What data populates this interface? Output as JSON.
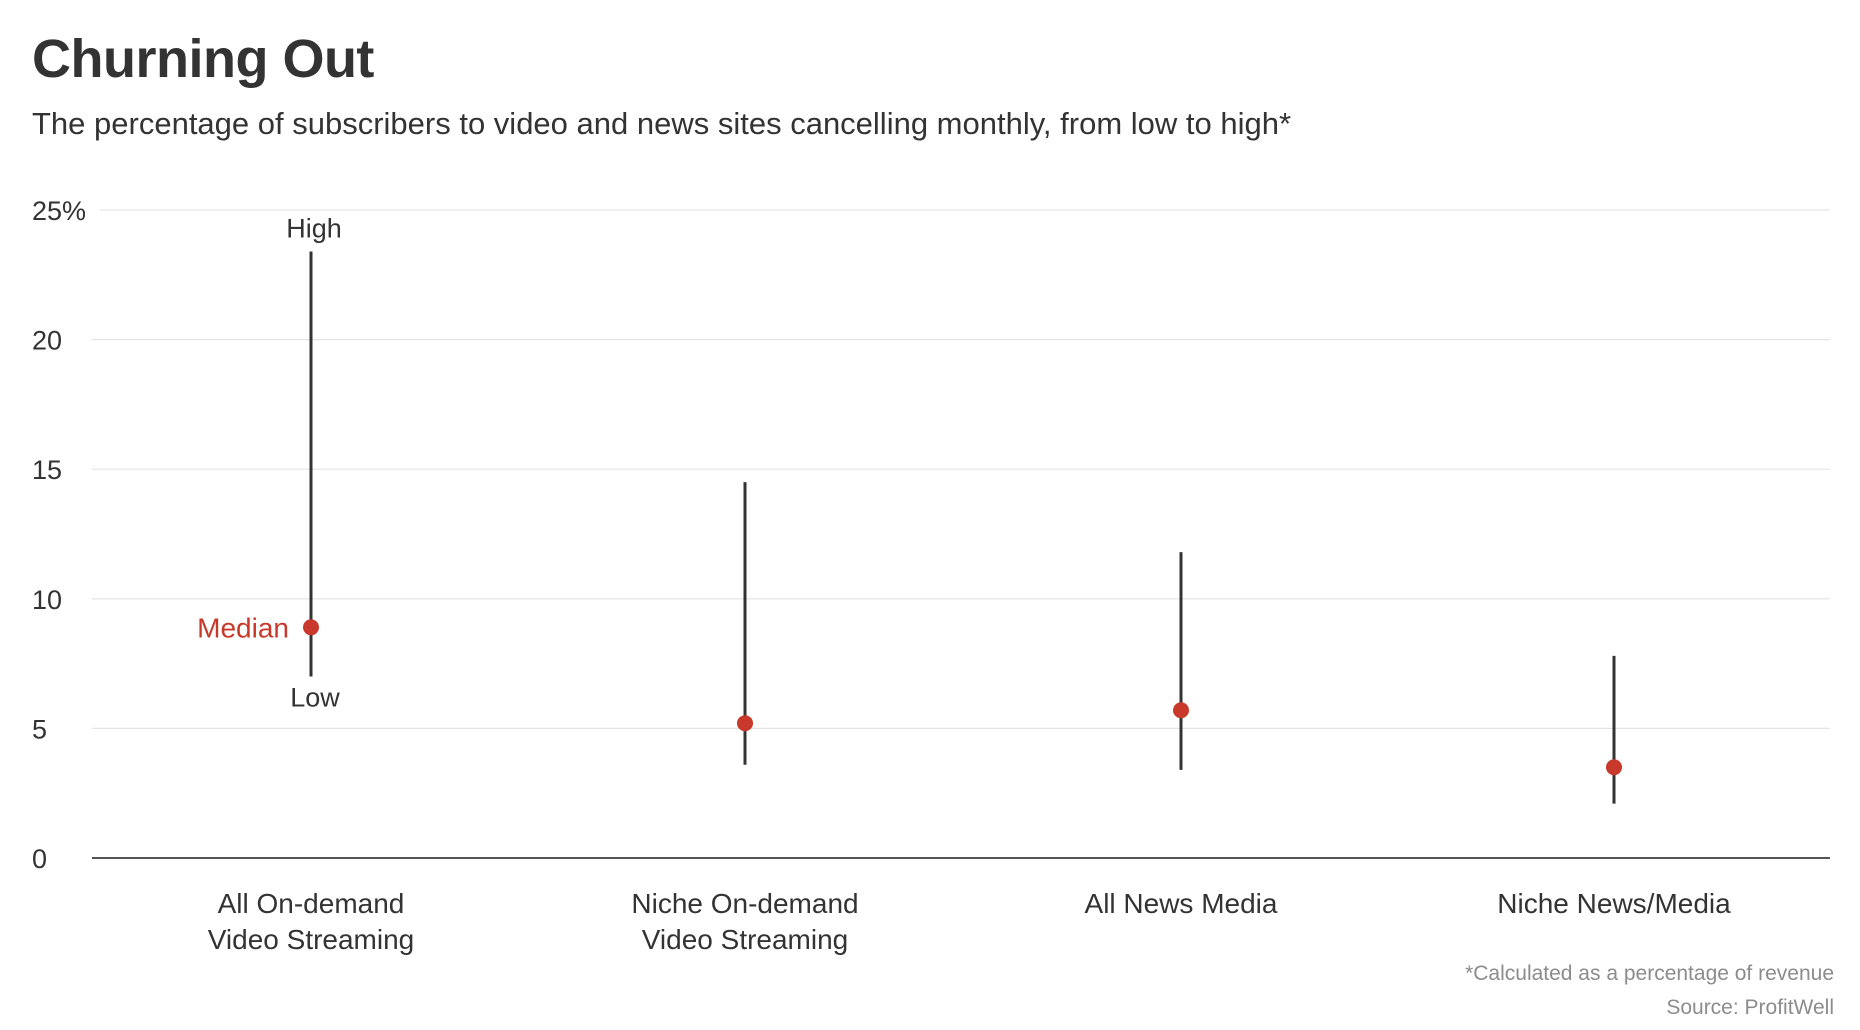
{
  "header": {
    "title": "Churning Out",
    "subtitle": "The percentage of subscribers to video and news sites cancelling monthly, from low to high*"
  },
  "footer": {
    "note": "*Calculated as a percentage of revenue",
    "source": "Source: ProfitWell"
  },
  "colors": {
    "text": "#333333",
    "median": "#c8392b",
    "range_line": "#333333",
    "grid": "#e3e3e3",
    "axis": "#555555",
    "muted": "#8c8c8c"
  },
  "chart_data": {
    "type": "range-dot",
    "title": "Churning Out",
    "subtitle": "The percentage of subscribers to video and news sites cancelling monthly, from low to high*",
    "ylim": [
      0,
      25
    ],
    "yticks": [
      0,
      5,
      10,
      15,
      20,
      25
    ],
    "ytick_labels": [
      "0",
      "5",
      "10",
      "15",
      "20",
      "25%"
    ],
    "grid": true,
    "categories": [
      [
        "All On-demand",
        "Video Streaming"
      ],
      [
        "Niche On-demand",
        "Video Streaming"
      ],
      [
        "All News Media"
      ],
      [
        "Niche News/Media"
      ]
    ],
    "series": [
      {
        "name": "Low",
        "values": [
          7.0,
          3.6,
          3.4,
          2.1
        ]
      },
      {
        "name": "High",
        "values": [
          23.4,
          14.5,
          11.8,
          7.8
        ]
      },
      {
        "name": "Median",
        "values": [
          8.9,
          5.2,
          5.7,
          3.5
        ]
      }
    ],
    "annotations": {
      "high": "High",
      "low": "Low",
      "median": "Median"
    }
  }
}
